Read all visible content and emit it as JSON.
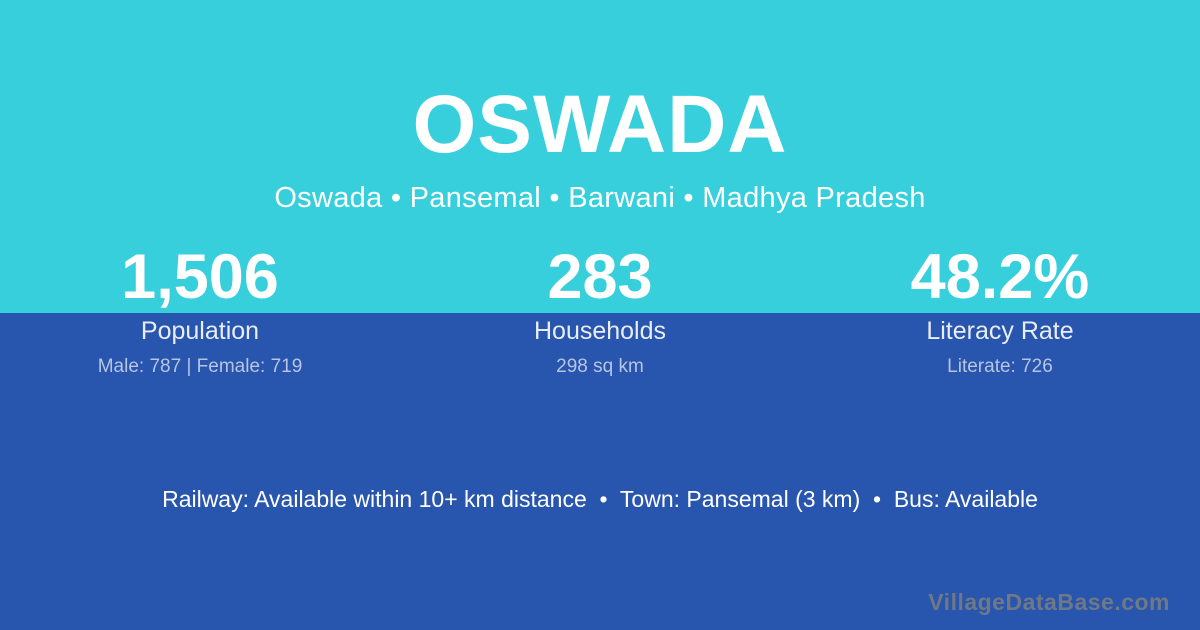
{
  "card": {
    "title": "OSWADA",
    "subtitle": "Oswada • Pansemal • Barwani • Madhya Pradesh",
    "stats": [
      {
        "value": "1,506",
        "label": "Population",
        "detail": "Male: 787 | Female: 719"
      },
      {
        "value": "283",
        "label": "Households",
        "detail": "298 sq km"
      },
      {
        "value": "48.2%",
        "label": "Literacy Rate",
        "detail": "Literate: 726"
      }
    ],
    "amenities_line": "Railway: Available within 10+ km distance  •  Town: Pansemal (3 km)  •  Bus: Available",
    "watermark": "VillageDataBase.com",
    "colors": {
      "top_background": "#37cfdc",
      "bottom_background": "#2855ad",
      "primary_text": "#ffffff",
      "stat_label_text": "#e8edf8",
      "stat_detail_text": "#b7c4e3",
      "watermark_text": "#6e7886"
    }
  }
}
